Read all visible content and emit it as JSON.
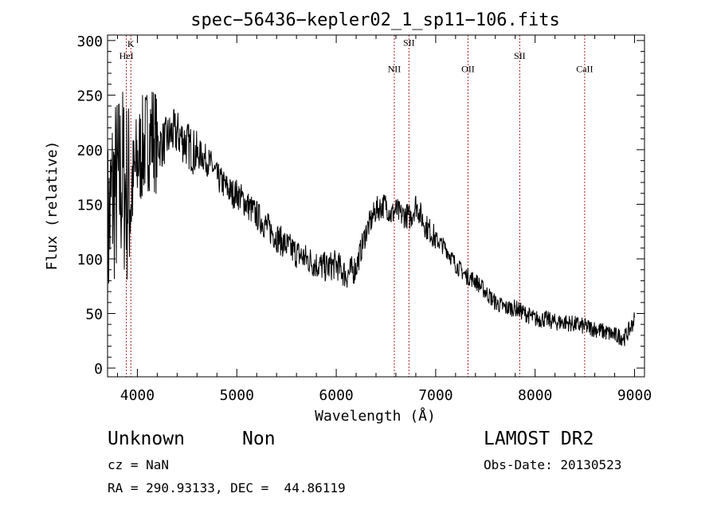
{
  "chart_data": {
    "type": "line",
    "title": "spec−56436−kepler02_1_sp11−106.fits",
    "xlabel": "Wavelength (Å)",
    "ylabel": "Flux (relative)",
    "xlim": [
      3700,
      9100
    ],
    "ylim": [
      -8,
      305
    ],
    "xticks": [
      4000,
      5000,
      6000,
      7000,
      8000,
      9000
    ],
    "yticks": [
      0,
      50,
      100,
      150,
      200,
      250,
      300
    ],
    "xminor_step": 200,
    "yminor_step": 10,
    "grid": false,
    "line_color": "#000000",
    "marker_color": "#b22222",
    "spectral_lines": [
      {
        "label": "K",
        "x": 3934,
        "label_y": 294
      },
      {
        "label": "HeI",
        "x": 3889,
        "label_y": 283
      },
      {
        "label": "SII",
        "x": 6731,
        "label_y": 295
      },
      {
        "label": "NII",
        "x": 6584,
        "label_y": 271
      },
      {
        "label": "OII",
        "x": 7325,
        "label_y": 271
      },
      {
        "label": "SII",
        "x": 7845,
        "label_y": 283
      },
      {
        "label": "CaII",
        "x": 8498,
        "label_y": 271
      }
    ],
    "series": [
      {
        "x": [
          3700,
          3750,
          3800,
          3850,
          3900,
          3950,
          4000,
          4050,
          4100,
          4150,
          4200,
          4250,
          4300,
          4350,
          4400,
          4450,
          4500,
          4550,
          4600,
          4650,
          4700,
          4750,
          4800,
          4850,
          4900,
          4950,
          5000,
          5100,
          5200,
          5300,
          5400,
          5500,
          5600,
          5700,
          5800,
          5900,
          6000,
          6100,
          6200,
          6300,
          6400,
          6500,
          6550,
          6600,
          6650,
          6700,
          6750,
          6800,
          6850,
          6900,
          6950,
          7000,
          7100,
          7200,
          7300,
          7400,
          7500,
          7600,
          7700,
          7800,
          7900,
          8000,
          8100,
          8200,
          8300,
          8400,
          8500,
          8600,
          8700,
          8800,
          8900,
          8950,
          9000
        ],
        "y": [
          120,
          160,
          165,
          175,
          160,
          165,
          190,
          200,
          210,
          215,
          205,
          205,
          210,
          215,
          215,
          210,
          205,
          200,
          195,
          195,
          190,
          185,
          175,
          170,
          165,
          160,
          160,
          150,
          140,
          130,
          120,
          112,
          105,
          100,
          95,
          92,
          95,
          85,
          92,
          125,
          145,
          150,
          140,
          145,
          140,
          140,
          138,
          150,
          140,
          130,
          125,
          118,
          110,
          95,
          85,
          80,
          70,
          60,
          55,
          55,
          50,
          45,
          45,
          42,
          42,
          40,
          38,
          36,
          33,
          30,
          28,
          35,
          45
        ]
      }
    ]
  },
  "footer": {
    "object": "Unknown",
    "class": "Non",
    "survey": "LAMOST DR2",
    "cz": "cz = NaN",
    "obs_date": "Obs-Date: 20130523",
    "coords": "RA = 290.93133, DEC =  44.86119"
  }
}
